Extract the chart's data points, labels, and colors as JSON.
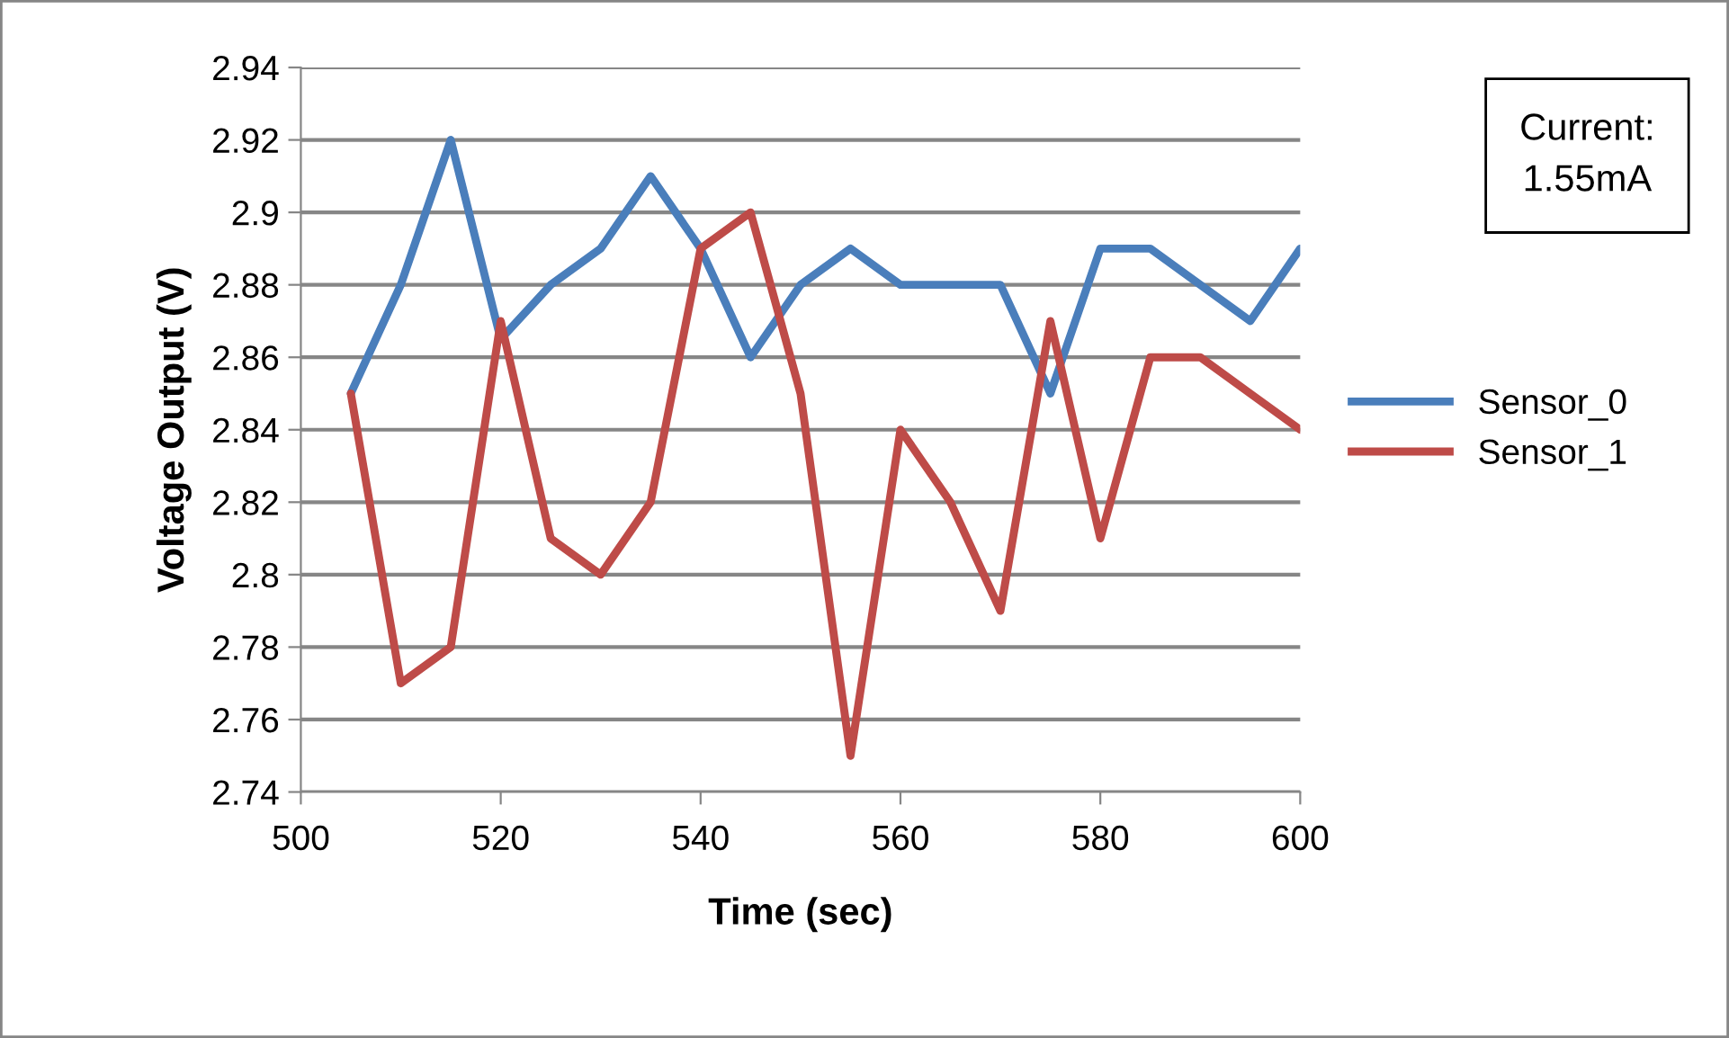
{
  "chart_data": {
    "type": "line",
    "xlabel": "Time (sec)",
    "ylabel": "Voltage Output (V)",
    "x": [
      505,
      510,
      515,
      520,
      525,
      530,
      535,
      540,
      545,
      550,
      555,
      560,
      565,
      570,
      575,
      580,
      585,
      590,
      595,
      600
    ],
    "series": [
      {
        "name": "Sensor_0",
        "color": "#4a7ebb",
        "values": [
          2.85,
          2.88,
          2.92,
          2.865,
          2.88,
          2.89,
          2.91,
          2.89,
          2.86,
          2.88,
          2.89,
          2.88,
          2.88,
          2.88,
          2.85,
          2.89,
          2.89,
          2.88,
          2.87,
          2.89
        ]
      },
      {
        "name": "Sensor_1",
        "color": "#be4b48",
        "values": [
          2.85,
          2.77,
          2.78,
          2.87,
          2.81,
          2.8,
          2.82,
          2.89,
          2.9,
          2.85,
          2.75,
          2.84,
          2.82,
          2.79,
          2.87,
          2.81,
          2.86,
          2.86,
          2.85,
          2.84
        ]
      }
    ],
    "xlim": [
      500,
      600
    ],
    "xticks": [
      500,
      520,
      540,
      560,
      580,
      600
    ],
    "ylim": [
      2.74,
      2.94
    ],
    "yticks": [
      {
        "value": 2.74,
        "label": "2.74"
      },
      {
        "value": 2.76,
        "label": "2.76"
      },
      {
        "value": 2.78,
        "label": "2.78"
      },
      {
        "value": 2.8,
        "label": "2.8"
      },
      {
        "value": 2.82,
        "label": "2.82"
      },
      {
        "value": 2.84,
        "label": "2.84"
      },
      {
        "value": 2.86,
        "label": "2.86"
      },
      {
        "value": 2.88,
        "label": "2.88"
      },
      {
        "value": 2.9,
        "label": "2.9"
      },
      {
        "value": 2.92,
        "label": "2.92"
      },
      {
        "value": 2.94,
        "label": "2.94"
      }
    ],
    "grid": "y",
    "legend": "right",
    "marker": "none",
    "line_style": "solid",
    "annotations": [
      "Current:\n1.55mA"
    ]
  }
}
